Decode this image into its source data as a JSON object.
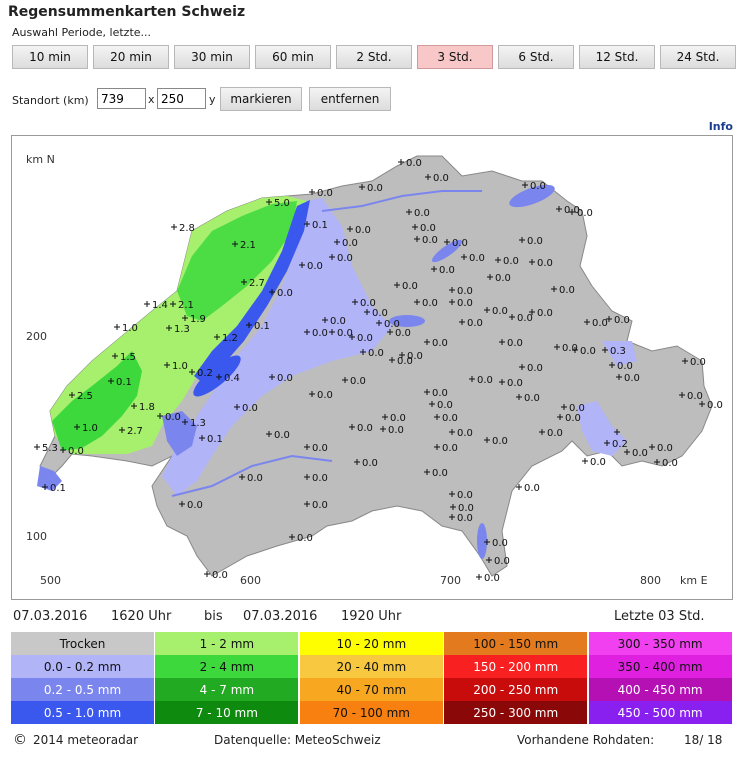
{
  "title": "Regensummenkarten Schweiz",
  "period_label": "Auswahl Periode, letzte...",
  "period_buttons": [
    "10 min",
    "20 min",
    "30 min",
    "60 min",
    "2 Std.",
    "3 Std.",
    "6 Std.",
    "12 Std.",
    "24 Std."
  ],
  "period_selected": "3 Std.",
  "location": {
    "label": "Standort (km)",
    "x_value": "739",
    "separator": "x",
    "y_value": "250",
    "y_label": "y",
    "mark_button": "markieren",
    "remove_button": "entfernen"
  },
  "info_link": "Info",
  "map": {
    "axis_y_title": "km N",
    "axis_x_title": "km E",
    "y_ticks": [
      "200",
      "100"
    ],
    "x_ticks": [
      "500",
      "600",
      "700",
      "800"
    ],
    "rain_values": [
      "2.8",
      "5.0",
      "2.1",
      "2.7",
      "1.4",
      "2.1",
      "1.9",
      "1.3",
      "1.0",
      "1.2",
      "1.5",
      "0.1",
      "1.0",
      "2.5",
      "1.8",
      "2.7",
      "1.0",
      "5.3",
      "0.1",
      "0.0",
      "0.2",
      "0.4",
      "1.3",
      "0.1",
      "0.0",
      "0.1",
      "0.0",
      "0.1",
      "0.0",
      "0.0",
      "0.0",
      "0.0",
      "0.0",
      "0.0",
      "0.0",
      "0.0",
      "0.0",
      "0.0",
      "0.0",
      "0.0",
      "0.0",
      "0.0",
      "0.0",
      "0.0",
      "0.0",
      "0.0",
      "0.0",
      "0.0",
      "0.0",
      "0.0",
      "0.0",
      "0.0",
      "0.0",
      "0.0",
      "0.0",
      "0.0",
      "0.0",
      "0.0",
      "0.0",
      "0.0",
      "0.0",
      "0.0",
      "0.0",
      "0.0",
      "0.0",
      "0.0",
      "0.0",
      "0.0",
      "0.0",
      "0.0",
      "0.0",
      "0.0",
      "0.0",
      "0.0",
      "0.0",
      "0.0",
      "0.0",
      "0.0",
      "0.0",
      "0.0",
      "0.0",
      "0.0",
      "0.0",
      "0.0",
      "0.0",
      "0.0",
      "0.0",
      "0.0",
      "0.0",
      "0.0",
      "0.0",
      "0.0",
      "0.0",
      "0.0",
      "0.0",
      "0.3",
      "0.0",
      "0.0",
      "0.2",
      "0.0",
      "0.0",
      "0.0",
      "0.0",
      "0.0",
      "0.0",
      "0.0",
      "0.0",
      "0.0",
      "0.0",
      "0.0",
      "0.0",
      "0.0",
      "0.0",
      "0.0",
      "0.0",
      "0.0",
      "0.0",
      "0.0",
      "0.0",
      "0.0",
      "0.0",
      "0.0",
      "0.0"
    ]
  },
  "time_range": {
    "start_date": "07.03.2016",
    "start_time": "1620 Uhr",
    "bis": "bis",
    "end_date": "07.03.2016",
    "end_time": "1920 Uhr",
    "last": "Letzte 03 Std."
  },
  "legend": [
    [
      {
        "label": "Trocken",
        "color": "#c8c8c8"
      },
      {
        "label": "1 - 2 mm",
        "color": "#a6f06e"
      },
      {
        "label": "10 - 20 mm",
        "color": "#fefe00"
      },
      {
        "label": "100 - 150 mm",
        "color": "#e47a1e"
      },
      {
        "label": "300 - 350 mm",
        "color": "#f040f0"
      }
    ],
    [
      {
        "label": "0.0 - 0.2 mm",
        "color": "#b2b4f8"
      },
      {
        "label": "2 - 4 mm",
        "color": "#3cd83c"
      },
      {
        "label": "20 - 40 mm",
        "color": "#f8c840"
      },
      {
        "label": "150 - 200 mm",
        "color": "#f82020"
      },
      {
        "label": "350 - 400 mm",
        "color": "#e020e0"
      }
    ],
    [
      {
        "label": "0.2 - 0.5 mm",
        "color": "#7a86ee"
      },
      {
        "label": "4 - 7 mm",
        "color": "#22aa22"
      },
      {
        "label": "40 - 70 mm",
        "color": "#f8a820"
      },
      {
        "label": "200 - 250 mm",
        "color": "#c80c0c"
      },
      {
        "label": "400 - 450 mm",
        "color": "#b410b4"
      }
    ],
    [
      {
        "label": "0.5 - 1.0 mm",
        "color": "#3a58ee"
      },
      {
        "label": "7 - 10 mm",
        "color": "#0e8a0e"
      },
      {
        "label": "70 - 100 mm",
        "color": "#f88010"
      },
      {
        "label": "250 - 300 mm",
        "color": "#8a0808"
      },
      {
        "label": "450 - 500 mm",
        "color": "#8a20f0"
      }
    ]
  ],
  "footer": {
    "copyright": "2014  meteoradar",
    "source": "Datenquelle: MeteoSchweiz",
    "raw_data_label": "Vorhandene Rohdaten:",
    "raw_data_value": "18/ 18"
  }
}
